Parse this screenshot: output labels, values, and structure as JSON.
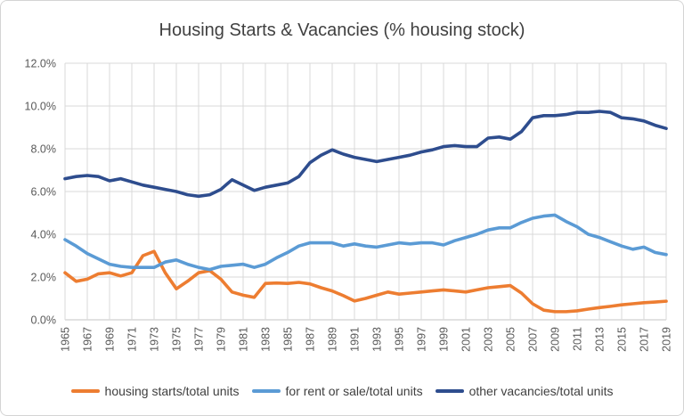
{
  "title": "Housing Starts & Vacancies (% housing stock)",
  "colors": {
    "gridline": "#d9d9d9",
    "axis_bottom": "#c6c6c6",
    "axis_text": "#595959",
    "title_text": "#404040"
  },
  "chart_data": {
    "type": "line",
    "title": "Housing Starts & Vacancies (% housing stock)",
    "xlabel": "",
    "ylabel": "",
    "ylim": [
      0,
      12
    ],
    "ytick_labels": [
      "0.0%",
      "2.0%",
      "4.0%",
      "6.0%",
      "8.0%",
      "10.0%",
      "12.0%"
    ],
    "ytick_values": [
      0,
      2,
      4,
      6,
      8,
      10,
      12
    ],
    "xtick_labels": [
      "1965",
      "1967",
      "1969",
      "1971",
      "1973",
      "1975",
      "1977",
      "1979",
      "1981",
      "1983",
      "1985",
      "1987",
      "1989",
      "1991",
      "1993",
      "1995",
      "1997",
      "1999",
      "2001",
      "2003",
      "2005",
      "2007",
      "2009",
      "2011",
      "2013",
      "2015",
      "2017",
      "2019"
    ],
    "grid": true,
    "legend_position": "bottom",
    "x": [
      1965,
      1966,
      1967,
      1968,
      1969,
      1970,
      1971,
      1972,
      1973,
      1974,
      1975,
      1976,
      1977,
      1978,
      1979,
      1980,
      1981,
      1982,
      1983,
      1984,
      1985,
      1986,
      1987,
      1988,
      1989,
      1990,
      1991,
      1992,
      1993,
      1994,
      1995,
      1996,
      1997,
      1998,
      1999,
      2000,
      2001,
      2002,
      2003,
      2004,
      2005,
      2006,
      2007,
      2008,
      2009,
      2010,
      2011,
      2012,
      2013,
      2014,
      2015,
      2016,
      2017,
      2018,
      2019
    ],
    "series": [
      {
        "name": "housing starts/total units",
        "color": "#ED7D31",
        "values": [
          2.2,
          1.8,
          1.9,
          2.15,
          2.2,
          2.05,
          2.2,
          3.0,
          3.2,
          2.2,
          1.45,
          1.8,
          2.2,
          2.3,
          1.9,
          1.3,
          1.15,
          1.05,
          1.7,
          1.72,
          1.7,
          1.75,
          1.68,
          1.5,
          1.35,
          1.13,
          0.88,
          1.0,
          1.15,
          1.3,
          1.2,
          1.25,
          1.3,
          1.35,
          1.4,
          1.35,
          1.3,
          1.4,
          1.5,
          1.55,
          1.6,
          1.25,
          0.75,
          0.45,
          0.38,
          0.38,
          0.42,
          0.5,
          0.57,
          0.63,
          0.7,
          0.75,
          0.8,
          0.83,
          0.87
        ]
      },
      {
        "name": "for rent or sale/total units",
        "color": "#5B9BD5",
        "values": [
          3.75,
          3.45,
          3.1,
          2.85,
          2.6,
          2.5,
          2.45,
          2.45,
          2.45,
          2.7,
          2.8,
          2.6,
          2.45,
          2.35,
          2.5,
          2.55,
          2.6,
          2.45,
          2.6,
          2.9,
          3.15,
          3.45,
          3.6,
          3.6,
          3.6,
          3.45,
          3.55,
          3.45,
          3.4,
          3.5,
          3.6,
          3.55,
          3.6,
          3.6,
          3.5,
          3.7,
          3.85,
          4.0,
          4.2,
          4.3,
          4.3,
          4.55,
          4.75,
          4.85,
          4.9,
          4.6,
          4.35,
          4.0,
          3.85,
          3.65,
          3.45,
          3.3,
          3.4,
          3.15,
          3.05
        ]
      },
      {
        "name": "other vacancies/total units",
        "color": "#2E4D8E",
        "values": [
          6.6,
          6.7,
          6.75,
          6.7,
          6.5,
          6.6,
          6.45,
          6.3,
          6.2,
          6.1,
          6.0,
          5.85,
          5.78,
          5.85,
          6.1,
          6.55,
          6.3,
          6.05,
          6.2,
          6.3,
          6.4,
          6.7,
          7.35,
          7.7,
          7.95,
          7.75,
          7.6,
          7.5,
          7.4,
          7.5,
          7.6,
          7.7,
          7.85,
          7.95,
          8.1,
          8.15,
          8.1,
          8.1,
          8.5,
          8.55,
          8.45,
          8.8,
          9.45,
          9.55,
          9.55,
          9.6,
          9.7,
          9.7,
          9.75,
          9.7,
          9.45,
          9.4,
          9.3,
          9.1,
          8.95
        ]
      }
    ]
  }
}
